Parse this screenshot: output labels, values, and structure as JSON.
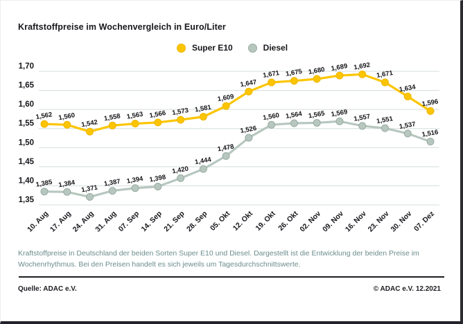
{
  "chart_data": {
    "type": "line",
    "title": "Kraftstoffpreise im Wochenvergleich in Euro/Liter",
    "categories": [
      "10. Aug",
      "17. Aug",
      "24. Aug",
      "31. Aug",
      "07. Sep",
      "14. Sep",
      "21. Sep",
      "28. Sep",
      "05. Okt",
      "12. Okt",
      "19. Okt",
      "26. Okt",
      "02. Nov",
      "09. Nov",
      "16. Nov",
      "23. Nov",
      "30. Nov",
      "07. Dez"
    ],
    "series": [
      {
        "name": "Super E10",
        "color": "#fcc500",
        "stroke": "#edb600",
        "values": [
          1.562,
          1.56,
          1.542,
          1.558,
          1.563,
          1.566,
          1.573,
          1.581,
          1.609,
          1.647,
          1.671,
          1.675,
          1.68,
          1.689,
          1.692,
          1.671,
          1.634,
          1.596
        ]
      },
      {
        "name": "Diesel",
        "color": "#b7c7bf",
        "stroke": "#97aba3",
        "values": [
          1.385,
          1.384,
          1.371,
          1.387,
          1.394,
          1.398,
          1.42,
          1.444,
          1.478,
          1.526,
          1.56,
          1.564,
          1.565,
          1.569,
          1.557,
          1.551,
          1.537,
          1.516
        ]
      }
    ],
    "ylim": [
      1.35,
      1.7
    ],
    "ytick_labels": [
      "1,70",
      "1,65",
      "1,60",
      "1,55",
      "1,50",
      "1,45",
      "1,40",
      "1,35"
    ],
    "grid": true,
    "legend_position": "top",
    "grid_color": "#d4dddc",
    "label_color": "#17171c"
  },
  "caption": {
    "line1": "Kraftstoffpreise in Deutschland der beiden Sorten Super E10 und Diesel. Dargestellt ist die Entwicklung der beiden Preise im",
    "line2": "Wochenrhythmus. Bei den Preisen handelt es sich jeweils um Tagesdurchschnittswerte."
  },
  "footer": {
    "source": "Quelle: ADAC e.V.",
    "copyright": "© ADAC e.V. 12.2021"
  }
}
